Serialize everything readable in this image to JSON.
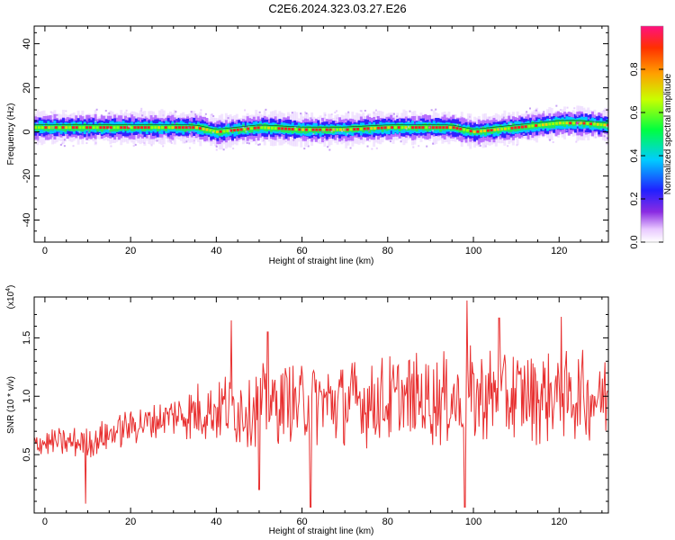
{
  "title": "C2E6.2024.323.03.27.E26",
  "chart_data": [
    {
      "type": "heatmap",
      "xlabel": "Height of straight line (km)",
      "ylabel": "Frequency (Hz)",
      "xlim": [
        -2.5,
        131.5
      ],
      "ylim": [
        -50,
        48
      ],
      "x_ticks": [
        "0",
        "20",
        "40",
        "60",
        "80",
        "100",
        "120"
      ],
      "x_tick_values": [
        0,
        20,
        40,
        60,
        80,
        100,
        120
      ],
      "y_ticks": [
        "40",
        "20",
        "0",
        "-20",
        "-40"
      ],
      "y_tick_values": [
        40,
        20,
        0,
        -20,
        -40
      ],
      "colorbar": {
        "label": "Normalized spectral amplitude",
        "ticks": [
          "0.0",
          "0.2",
          "0.4",
          "0.6",
          "0.8"
        ],
        "tick_values": [
          0.0,
          0.2,
          0.4,
          0.6,
          0.8
        ],
        "range": [
          0.0,
          1.0
        ]
      },
      "ridge": {
        "x": [
          -2,
          5,
          10,
          20,
          30,
          35,
          40,
          45,
          50,
          60,
          70,
          80,
          90,
          95,
          100,
          105,
          110,
          115,
          120,
          125,
          131
        ],
        "y": [
          2,
          2,
          2,
          2,
          2,
          2,
          0,
          1,
          2,
          1,
          1,
          2,
          2,
          2,
          0,
          1,
          2,
          3,
          4,
          4,
          3
        ]
      }
    },
    {
      "type": "line",
      "xlabel": "Height of straight line (km)",
      "ylabel": "SNR (10 * v/v)",
      "multiplier": "(x10",
      "multiplier_exp": "4",
      "multiplier_close": ")",
      "xlim": [
        -2.5,
        131.5
      ],
      "ylim": [
        0.0,
        1.85
      ],
      "x_ticks": [
        "0",
        "20",
        "40",
        "60",
        "80",
        "100",
        "120"
      ],
      "x_tick_values": [
        0,
        20,
        40,
        60,
        80,
        100,
        120
      ],
      "y_ticks": [
        "1.5",
        "1.0",
        "0.5"
      ],
      "y_tick_values": [
        1.5,
        1.0,
        0.5
      ],
      "series": [
        {
          "color": "#e83030",
          "x_start": -2.5,
          "x_step": 0.2,
          "trend": [
            [
              -2.5,
              0.6
            ],
            [
              10,
              0.6
            ],
            [
              20,
              0.75
            ],
            [
              40,
              0.9
            ],
            [
              60,
              0.95
            ],
            [
              80,
              0.95
            ],
            [
              100,
              1.0
            ],
            [
              131.5,
              1.0
            ]
          ],
          "amp": [
            [
              -2.5,
              0.12
            ],
            [
              30,
              0.2
            ],
            [
              42,
              0.35
            ],
            [
              100,
              0.45
            ],
            [
              131.5,
              0.4
            ]
          ],
          "peaks": [
            [
              43.5,
              1.65
            ],
            [
              98.5,
              1.82
            ],
            [
              106,
              1.67
            ],
            [
              120.5,
              1.68
            ],
            [
              52,
              1.55
            ]
          ],
          "troughs": [
            [
              9.5,
              0.08
            ],
            [
              62,
              0.05
            ],
            [
              98,
              0.05
            ],
            [
              50,
              0.2
            ]
          ]
        }
      ]
    }
  ]
}
